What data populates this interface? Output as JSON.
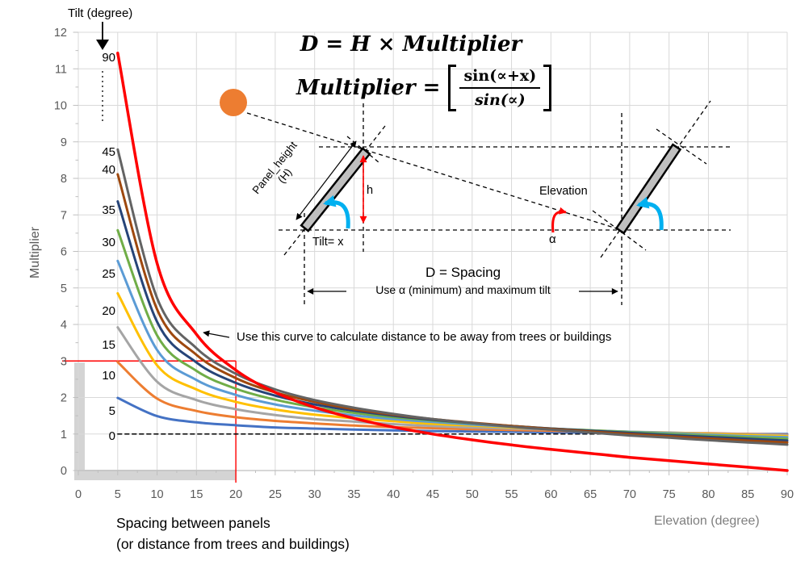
{
  "legend": {
    "title": "Tilt (degree)"
  },
  "formulas": {
    "line1": "D = H × Multiplier",
    "line2_lhs": "Multiplier =",
    "fraction_num": "sin(∝+x)",
    "fraction_den": "sin(∝)"
  },
  "annotations": {
    "curve_note": "Use this curve to calculate distance to be away from trees or buildings",
    "d_spacing": "D = Spacing",
    "use_alpha": "Use α (minimum) and maximum tilt",
    "elevation": "Elevation",
    "alpha": "α",
    "tilt_x": "Tilt= x",
    "panel_height_line1": "Panel_height",
    "panel_height_line2": "(H)",
    "h": "h"
  },
  "axes": {
    "y_title": "Multiplier",
    "x_title_right": "Elevation (degree)",
    "x_caption_line1": "Spacing between panels",
    "x_caption_line2": "(or distance from trees and buildings)"
  },
  "chart_data": {
    "type": "line",
    "title": "",
    "xlabel": "Elevation (degree)",
    "ylabel": "Multiplier",
    "xlim": [
      0,
      90
    ],
    "ylim": [
      0,
      12
    ],
    "grid": true,
    "legend_title": "Tilt (degree)",
    "x_ticks": [
      0,
      5,
      10,
      15,
      20,
      25,
      30,
      35,
      40,
      45,
      50,
      55,
      60,
      65,
      70,
      75,
      80,
      85,
      90
    ],
    "y_ticks": [
      0,
      1,
      2,
      3,
      4,
      5,
      6,
      7,
      8,
      9,
      10,
      11,
      12
    ],
    "x": [
      5,
      10,
      15,
      20,
      25,
      30,
      35,
      40,
      45,
      50,
      55,
      60,
      65,
      70,
      75,
      80,
      85,
      90
    ],
    "series": [
      {
        "label": "90",
        "color": "#FF0000",
        "dashed": false,
        "width": 3.5,
        "values": [
          11.43,
          5.67,
          3.73,
          2.75,
          2.14,
          1.73,
          1.43,
          1.19,
          1.0,
          0.84,
          0.7,
          0.58,
          0.47,
          0.36,
          0.27,
          0.18,
          0.09,
          0.0
        ]
      },
      {
        "label": "45",
        "color": "#636363",
        "dashed": false,
        "width": 3,
        "values": [
          8.79,
          4.72,
          3.35,
          2.65,
          2.22,
          1.93,
          1.72,
          1.55,
          1.41,
          1.3,
          1.2,
          1.12,
          1.04,
          0.96,
          0.9,
          0.83,
          0.77,
          0.71
        ]
      },
      {
        "label": "40",
        "color": "#9E480E",
        "dashed": false,
        "width": 3,
        "values": [
          8.11,
          4.41,
          3.17,
          2.53,
          2.14,
          1.88,
          1.68,
          1.53,
          1.41,
          1.31,
          1.22,
          1.14,
          1.07,
          1.0,
          0.94,
          0.88,
          0.82,
          0.77
        ]
      },
      {
        "label": "35",
        "color": "#264478",
        "dashed": false,
        "width": 3,
        "values": [
          7.37,
          4.07,
          2.96,
          2.4,
          2.05,
          1.81,
          1.64,
          1.5,
          1.39,
          1.3,
          1.22,
          1.15,
          1.09,
          1.03,
          0.97,
          0.92,
          0.87,
          0.82
        ]
      },
      {
        "label": "30",
        "color": "#70AD47",
        "dashed": false,
        "width": 3,
        "values": [
          6.58,
          3.7,
          2.73,
          2.24,
          1.94,
          1.73,
          1.58,
          1.46,
          1.37,
          1.29,
          1.22,
          1.15,
          1.1,
          1.05,
          1.0,
          0.95,
          0.91,
          0.87
        ]
      },
      {
        "label": "25",
        "color": "#5B9BD5",
        "dashed": false,
        "width": 3,
        "values": [
          5.74,
          3.3,
          2.48,
          2.07,
          1.81,
          1.64,
          1.51,
          1.41,
          1.33,
          1.26,
          1.2,
          1.15,
          1.1,
          1.06,
          1.02,
          0.98,
          0.94,
          0.91
        ]
      },
      {
        "label": "20",
        "color": "#FFC000",
        "dashed": false,
        "width": 3,
        "values": [
          4.85,
          2.88,
          2.22,
          1.88,
          1.67,
          1.53,
          1.43,
          1.35,
          1.28,
          1.23,
          1.18,
          1.14,
          1.1,
          1.06,
          1.03,
          1.0,
          0.97,
          0.94
        ]
      },
      {
        "label": "15",
        "color": "#A5A5A5",
        "dashed": false,
        "width": 3,
        "values": [
          3.92,
          2.43,
          1.93,
          1.68,
          1.52,
          1.41,
          1.34,
          1.27,
          1.22,
          1.18,
          1.15,
          1.12,
          1.09,
          1.06,
          1.04,
          1.01,
          0.99,
          0.97
        ]
      },
      {
        "label": "10",
        "color": "#ED7D31",
        "dashed": false,
        "width": 3,
        "values": [
          2.97,
          1.97,
          1.63,
          1.46,
          1.36,
          1.29,
          1.23,
          1.19,
          1.16,
          1.13,
          1.11,
          1.09,
          1.07,
          1.05,
          1.03,
          1.02,
          1.0,
          0.98
        ]
      },
      {
        "label": "5",
        "color": "#4472C4",
        "dashed": false,
        "width": 3,
        "values": [
          1.99,
          1.49,
          1.32,
          1.24,
          1.18,
          1.15,
          1.12,
          1.1,
          1.08,
          1.07,
          1.06,
          1.05,
          1.04,
          1.03,
          1.02,
          1.01,
          1.0,
          1.0
        ]
      },
      {
        "label": "0",
        "color": "#000000",
        "dashed": true,
        "width": 1.5,
        "values": [
          1.0,
          1.0,
          1.0,
          1.0,
          1.0,
          1.0,
          1.0,
          1.0,
          1.0,
          1.0,
          1.0,
          1.0,
          1.0,
          1.0,
          1.0,
          1.0,
          1.0,
          1.0
        ]
      }
    ],
    "crosshair": {
      "x": 20,
      "y": 3,
      "color": "#FF0000"
    },
    "highlight_region": {
      "x_max": 20,
      "y_max": 3,
      "shade_color": "#D4D4D4"
    },
    "annotation": "Use this curve to calculate distance to be away from trees or buildings"
  }
}
